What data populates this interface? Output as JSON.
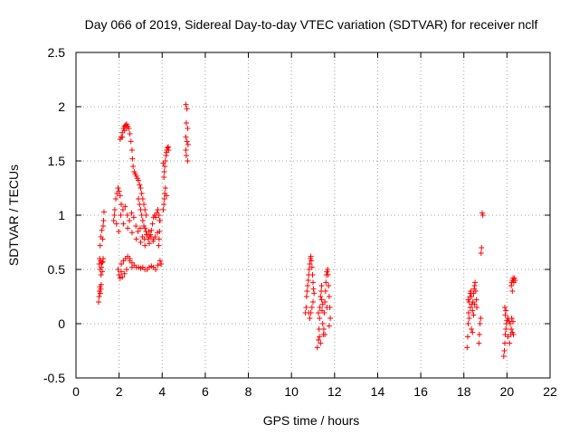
{
  "chart_data": {
    "type": "scatter",
    "title": "Day 066 of 2019, Sidereal Day-to-day VTEC variation (SDTVAR) for receiver nclf",
    "xlabel": "GPS time / hours",
    "ylabel": "SDTVAR / TECUs",
    "xlim": [
      0,
      22
    ],
    "ylim": [
      -0.5,
      2.5
    ],
    "x_ticks": [
      0,
      2,
      4,
      6,
      8,
      10,
      12,
      14,
      16,
      18,
      20,
      22
    ],
    "y_ticks": [
      -0.5,
      0,
      0.5,
      1,
      1.5,
      2,
      2.5
    ],
    "x_tick_labels": [
      "0",
      "2",
      "4",
      "6",
      "8",
      "10",
      "12",
      "14",
      "16",
      "18",
      "20",
      "22"
    ],
    "y_tick_labels": [
      "-0.5",
      "0",
      "0.5",
      "1",
      "1.5",
      "2",
      "2.5"
    ],
    "grid": true,
    "marker": "+",
    "color": "#ff0000",
    "series": [
      {
        "name": "SDTVAR",
        "points": [
          [
            1.05,
            0.2
          ],
          [
            1.07,
            0.25
          ],
          [
            1.09,
            0.3
          ],
          [
            1.11,
            0.34
          ],
          [
            1.13,
            0.28
          ],
          [
            1.15,
            0.32
          ],
          [
            1.17,
            0.36
          ],
          [
            1.08,
            0.55
          ],
          [
            1.1,
            0.6
          ],
          [
            1.12,
            0.5
          ],
          [
            1.14,
            0.58
          ],
          [
            1.16,
            0.45
          ],
          [
            1.18,
            0.52
          ],
          [
            1.2,
            0.56
          ],
          [
            1.22,
            0.48
          ],
          [
            1.24,
            0.57
          ],
          [
            1.26,
            0.6
          ],
          [
            1.12,
            0.72
          ],
          [
            1.16,
            0.8
          ],
          [
            1.2,
            0.86
          ],
          [
            1.24,
            0.78
          ],
          [
            1.28,
            0.95
          ],
          [
            1.3,
            1.03
          ],
          [
            1.26,
            0.9
          ],
          [
            1.75,
            0.95
          ],
          [
            1.8,
            1.05
          ],
          [
            1.85,
            1.15
          ],
          [
            1.9,
            1.2
          ],
          [
            1.95,
            1.25
          ],
          [
            2.0,
            1.22
          ],
          [
            2.05,
            1.18
          ],
          [
            2.1,
            1.1
          ],
          [
            1.78,
            1.0
          ],
          [
            1.88,
            0.92
          ],
          [
            1.98,
            0.85
          ],
          [
            2.08,
            1.0
          ],
          [
            2.18,
            1.05
          ],
          [
            2.28,
            1.08
          ],
          [
            2.38,
            1.0
          ],
          [
            2.48,
            0.95
          ],
          [
            2.58,
            1.02
          ],
          [
            2.68,
            0.98
          ],
          [
            2.78,
            0.9
          ],
          [
            2.88,
            0.85
          ],
          [
            2.98,
            0.88
          ],
          [
            3.08,
            0.8
          ],
          [
            3.18,
            0.78
          ],
          [
            3.28,
            0.82
          ],
          [
            3.38,
            0.85
          ],
          [
            3.48,
            0.8
          ],
          [
            3.58,
            0.76
          ],
          [
            3.68,
            0.8
          ],
          [
            3.78,
            0.84
          ],
          [
            3.88,
            0.95
          ],
          [
            2.2,
            0.92
          ],
          [
            2.4,
            0.88
          ],
          [
            2.6,
            0.84
          ],
          [
            2.8,
            0.78
          ],
          [
            3.0,
            0.75
          ],
          [
            3.2,
            0.72
          ],
          [
            3.4,
            0.74
          ],
          [
            3.6,
            0.78
          ],
          [
            2.1,
            0.55
          ],
          [
            2.2,
            0.58
          ],
          [
            2.3,
            0.6
          ],
          [
            2.4,
            0.62
          ],
          [
            2.5,
            0.58
          ],
          [
            2.6,
            0.56
          ],
          [
            2.7,
            0.54
          ],
          [
            2.8,
            0.52
          ],
          [
            2.9,
            0.52
          ],
          [
            3.0,
            0.51
          ],
          [
            3.1,
            0.52
          ],
          [
            3.2,
            0.5
          ],
          [
            3.3,
            0.5
          ],
          [
            3.4,
            0.52
          ],
          [
            3.5,
            0.53
          ],
          [
            3.6,
            0.52
          ],
          [
            3.7,
            0.5
          ],
          [
            3.8,
            0.54
          ],
          [
            1.95,
            0.5
          ],
          [
            2.0,
            0.45
          ],
          [
            2.05,
            0.42
          ],
          [
            2.1,
            0.48
          ],
          [
            2.15,
            0.43
          ],
          [
            2.25,
            0.46
          ],
          [
            2.35,
            0.5
          ],
          [
            2.5,
            0.6
          ],
          [
            2.6,
            0.52
          ],
          [
            3.9,
            0.58
          ],
          [
            3.95,
            0.55
          ],
          [
            2.05,
            1.7
          ],
          [
            2.1,
            1.72
          ],
          [
            2.15,
            1.76
          ],
          [
            2.2,
            1.8
          ],
          [
            2.25,
            1.82
          ],
          [
            2.3,
            1.83
          ],
          [
            2.35,
            1.84
          ],
          [
            2.4,
            1.82
          ],
          [
            2.45,
            1.8
          ],
          [
            2.5,
            1.75
          ],
          [
            2.55,
            1.68
          ],
          [
            2.6,
            1.6
          ],
          [
            2.62,
            1.52
          ],
          [
            2.65,
            1.45
          ],
          [
            2.7,
            1.4
          ],
          [
            2.75,
            1.38
          ],
          [
            2.8,
            1.36
          ],
          [
            2.85,
            1.34
          ],
          [
            2.9,
            1.32
          ],
          [
            2.95,
            1.28
          ],
          [
            3.0,
            1.25
          ],
          [
            3.05,
            1.2
          ],
          [
            3.1,
            1.15
          ],
          [
            3.15,
            1.1
          ],
          [
            3.2,
            1.05
          ],
          [
            3.25,
            1.0
          ],
          [
            2.15,
            1.72
          ],
          [
            2.25,
            1.78
          ],
          [
            2.35,
            1.8
          ],
          [
            2.9,
            1.15
          ],
          [
            2.95,
            1.1
          ],
          [
            3.0,
            1.05
          ],
          [
            3.05,
            1.0
          ],
          [
            3.1,
            0.95
          ],
          [
            3.15,
            0.9
          ],
          [
            3.2,
            0.88
          ],
          [
            3.25,
            0.85
          ],
          [
            3.3,
            0.82
          ],
          [
            3.35,
            0.78
          ],
          [
            3.4,
            0.8
          ],
          [
            3.45,
            0.82
          ],
          [
            3.5,
            0.86
          ],
          [
            3.55,
            0.92
          ],
          [
            3.6,
            0.98
          ],
          [
            3.65,
            1.0
          ],
          [
            3.7,
            0.98
          ],
          [
            3.75,
            1.02
          ],
          [
            3.8,
            1.05
          ],
          [
            3.85,
            1.0
          ],
          [
            3.9,
            0.95
          ],
          [
            3.88,
            0.85
          ],
          [
            3.86,
            0.78
          ],
          [
            3.84,
            0.72
          ],
          [
            4.05,
            1.05
          ],
          [
            4.08,
            1.1
          ],
          [
            4.1,
            1.15
          ],
          [
            4.12,
            1.2
          ],
          [
            4.15,
            1.25
          ],
          [
            4.1,
            1.4
          ],
          [
            4.12,
            1.45
          ],
          [
            4.15,
            1.5
          ],
          [
            4.18,
            1.55
          ],
          [
            4.2,
            1.58
          ],
          [
            4.22,
            1.6
          ],
          [
            4.25,
            1.62
          ],
          [
            4.28,
            1.63
          ],
          [
            4.3,
            1.6
          ],
          [
            4.05,
            1.48
          ],
          [
            4.08,
            1.35
          ],
          [
            4.2,
            1.18
          ],
          [
            5.1,
            2.02
          ],
          [
            5.15,
            1.98
          ],
          [
            5.12,
            1.85
          ],
          [
            5.18,
            1.8
          ],
          [
            5.1,
            1.72
          ],
          [
            5.15,
            1.68
          ],
          [
            5.2,
            1.65
          ],
          [
            5.12,
            1.55
          ],
          [
            5.18,
            1.5
          ],
          [
            5.1,
            1.6
          ],
          [
            10.65,
            0.1
          ],
          [
            10.68,
            0.15
          ],
          [
            10.7,
            0.25
          ],
          [
            10.72,
            0.3
          ],
          [
            10.75,
            0.35
          ],
          [
            10.78,
            0.4
          ],
          [
            10.8,
            0.45
          ],
          [
            10.82,
            0.5
          ],
          [
            10.85,
            0.55
          ],
          [
            10.88,
            0.6
          ],
          [
            10.9,
            0.62
          ],
          [
            10.92,
            0.58
          ],
          [
            10.95,
            0.52
          ],
          [
            10.98,
            0.45
          ],
          [
            11.0,
            0.38
          ],
          [
            11.02,
            0.32
          ],
          [
            11.05,
            0.28
          ],
          [
            11.0,
            0.2
          ],
          [
            10.95,
            0.15
          ],
          [
            10.9,
            0.1
          ],
          [
            10.85,
            0.05
          ],
          [
            10.8,
            0.1
          ],
          [
            11.2,
            -0.22
          ],
          [
            11.25,
            -0.15
          ],
          [
            11.28,
            -0.05
          ],
          [
            11.3,
            0.05
          ],
          [
            11.32,
            0.15
          ],
          [
            11.35,
            0.25
          ],
          [
            11.38,
            0.3
          ],
          [
            11.4,
            0.22
          ],
          [
            11.42,
            0.12
          ],
          [
            11.45,
            0.0
          ],
          [
            11.48,
            -0.1
          ],
          [
            11.5,
            -0.05
          ],
          [
            11.52,
            0.1
          ],
          [
            11.55,
            0.2
          ],
          [
            11.58,
            0.3
          ],
          [
            11.6,
            0.38
          ],
          [
            11.62,
            0.45
          ],
          [
            11.65,
            0.48
          ],
          [
            11.68,
            0.5
          ],
          [
            11.7,
            0.45
          ],
          [
            11.72,
            0.35
          ],
          [
            11.75,
            0.25
          ],
          [
            11.78,
            0.15
          ],
          [
            11.8,
            0.05
          ],
          [
            11.25,
            0.1
          ],
          [
            11.35,
            -0.18
          ],
          [
            11.45,
            0.18
          ],
          [
            11.55,
            -0.1
          ],
          [
            11.65,
            0.15
          ],
          [
            11.75,
            -0.02
          ],
          [
            11.4,
            0.35
          ],
          [
            11.3,
            -0.12
          ],
          [
            18.15,
            -0.22
          ],
          [
            18.18,
            -0.12
          ],
          [
            18.2,
            0.0
          ],
          [
            18.22,
            0.1
          ],
          [
            18.25,
            0.2
          ],
          [
            18.28,
            0.25
          ],
          [
            18.3,
            0.28
          ],
          [
            18.32,
            0.3
          ],
          [
            18.35,
            0.25
          ],
          [
            18.38,
            0.18
          ],
          [
            18.4,
            0.12
          ],
          [
            18.42,
            0.2
          ],
          [
            18.45,
            0.28
          ],
          [
            18.48,
            0.32
          ],
          [
            18.5,
            0.35
          ],
          [
            18.52,
            0.38
          ],
          [
            18.55,
            0.3
          ],
          [
            18.58,
            0.22
          ],
          [
            18.6,
            0.15
          ],
          [
            18.25,
            0.05
          ],
          [
            18.35,
            -0.05
          ],
          [
            18.45,
            0.08
          ],
          [
            18.3,
            0.15
          ],
          [
            18.4,
            -0.08
          ],
          [
            18.2,
            0.22
          ],
          [
            18.5,
            0.18
          ],
          [
            18.7,
            -0.18
          ],
          [
            18.72,
            -0.1
          ],
          [
            18.75,
            0.0
          ],
          [
            18.78,
            0.05
          ],
          [
            18.8,
            0.65
          ],
          [
            18.82,
            0.7
          ],
          [
            18.85,
            1.02
          ],
          [
            18.88,
            1.0
          ],
          [
            19.85,
            -0.3
          ],
          [
            19.88,
            -0.25
          ],
          [
            19.9,
            -0.18
          ],
          [
            19.92,
            -0.1
          ],
          [
            19.95,
            -0.05
          ],
          [
            19.98,
            0.0
          ],
          [
            20.0,
            0.03
          ],
          [
            20.05,
            0.05
          ],
          [
            20.1,
            0.02
          ],
          [
            20.15,
            0.0
          ],
          [
            20.2,
            -0.05
          ],
          [
            20.25,
            -0.08
          ],
          [
            20.3,
            -0.1
          ],
          [
            19.92,
            0.08
          ],
          [
            19.95,
            0.12
          ],
          [
            20.05,
            -0.12
          ],
          [
            20.12,
            -0.18
          ],
          [
            20.18,
            -0.1
          ],
          [
            20.22,
            0.05
          ],
          [
            20.28,
            0.02
          ],
          [
            20.2,
            0.35
          ],
          [
            20.22,
            0.38
          ],
          [
            20.25,
            0.4
          ],
          [
            20.28,
            0.42
          ],
          [
            20.3,
            0.4
          ],
          [
            20.32,
            0.38
          ],
          [
            20.35,
            0.42
          ],
          [
            20.38,
            0.4
          ],
          [
            20.25,
            0.3
          ],
          [
            19.9,
            0.15
          ]
        ]
      }
    ]
  }
}
